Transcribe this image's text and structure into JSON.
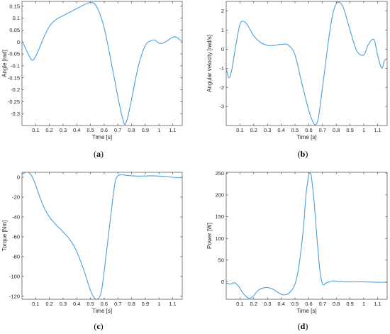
{
  "colors": {
    "line": "#4a9fdc",
    "axis": "#262626",
    "background": "#ffffff"
  },
  "chart_data": [
    {
      "type": "line",
      "caption_letter": "a",
      "xlabel": "Time [s]",
      "ylabel": "Angle [rad]",
      "xlim": [
        0,
        1.17
      ],
      "ylim": [
        -0.35,
        0.17
      ],
      "xticks": [
        0.1,
        0.2,
        0.3,
        0.4,
        0.5,
        0.6,
        0.7,
        0.8,
        0.9,
        1,
        1.1
      ],
      "xtick_labels": [
        "0.1",
        "0.2",
        "0.3",
        "0.4",
        "0.5",
        "0.6",
        "0.7",
        "0.8",
        "0.9",
        "1",
        "1.1"
      ],
      "yticks": [
        0.15,
        0.1,
        0.05,
        0,
        -0.05,
        -0.1,
        -0.15,
        -0.2,
        -0.25,
        -0.3
      ],
      "ytick_labels": [
        "0.15",
        "0.1",
        "0.05",
        "0",
        "-0.05",
        "-0.1",
        "-0.15",
        "-0.2",
        "-0.25",
        "-0.3"
      ],
      "grid": false,
      "series": [
        {
          "x": [
            0,
            0.02,
            0.05,
            0.07,
            0.09,
            0.12,
            0.16,
            0.2,
            0.25,
            0.3,
            0.35,
            0.4,
            0.45,
            0.48,
            0.5,
            0.53,
            0.56,
            0.6,
            0.65,
            0.7,
            0.73,
            0.75,
            0.77,
            0.8,
            0.85,
            0.9,
            0.94,
            0.97,
            1.0,
            1.03,
            1.06,
            1.1,
            1.13,
            1.15,
            1.17
          ],
          "y": [
            0.005,
            -0.02,
            -0.055,
            -0.075,
            -0.07,
            -0.035,
            0.02,
            0.065,
            0.095,
            0.11,
            0.125,
            0.14,
            0.155,
            0.163,
            0.165,
            0.16,
            0.13,
            0.06,
            -0.08,
            -0.23,
            -0.31,
            -0.345,
            -0.32,
            -0.24,
            -0.1,
            -0.015,
            0.005,
            0.008,
            -0.005,
            -0.005,
            0.005,
            0.02,
            0.02,
            0.01,
            0.005
          ]
        }
      ]
    },
    {
      "type": "line",
      "caption_letter": "b",
      "xlabel": "Time [s]",
      "ylabel": "Angular velocity [rad/s]",
      "xlim": [
        0,
        1.17
      ],
      "ylim": [
        -4.0,
        2.5
      ],
      "xticks": [
        0.1,
        0.2,
        0.3,
        0.4,
        0.5,
        0.6,
        0.7,
        0.8,
        0.9,
        1,
        1.1
      ],
      "xtick_labels": [
        "0.1",
        "0.2",
        "0.3",
        "0.4",
        "0.5",
        "0.6",
        "0.7",
        "0.8",
        "0.9",
        "1",
        "1.1"
      ],
      "yticks": [
        2,
        1,
        0,
        -1,
        -2,
        -3
      ],
      "ytick_labels": [
        "2",
        "1",
        "0",
        "-1",
        "-2",
        "-3"
      ],
      "grid": false,
      "series": [
        {
          "x": [
            0,
            0.02,
            0.04,
            0.07,
            0.1,
            0.13,
            0.16,
            0.2,
            0.25,
            0.3,
            0.35,
            0.4,
            0.45,
            0.5,
            0.55,
            0.6,
            0.63,
            0.65,
            0.67,
            0.7,
            0.75,
            0.78,
            0.81,
            0.85,
            0.9,
            0.95,
            1.0,
            1.03,
            1.06,
            1.08,
            1.1,
            1.13,
            1.15,
            1.17
          ],
          "y": [
            -1.0,
            -1.5,
            -1.1,
            0.2,
            1.3,
            1.45,
            1.2,
            0.7,
            0.35,
            0.2,
            0.2,
            0.25,
            0.22,
            -0.3,
            -1.8,
            -3.2,
            -3.8,
            -3.95,
            -3.6,
            -2.0,
            0.8,
            2.0,
            2.45,
            2.2,
            1.0,
            -0.1,
            -0.3,
            0.2,
            0.5,
            0.4,
            -0.3,
            -1.0,
            -0.6,
            -0.5
          ]
        }
      ]
    },
    {
      "type": "line",
      "caption_letter": "c",
      "xlabel": "Time [s]",
      "ylabel": "Torque [Nm]",
      "xlim": [
        0,
        1.17
      ],
      "ylim": [
        -123,
        5
      ],
      "xticks": [
        0.1,
        0.2,
        0.3,
        0.4,
        0.5,
        0.6,
        0.7,
        0.8,
        0.9,
        1,
        1.1
      ],
      "xtick_labels": [
        "0.1",
        "0.2",
        "0.3",
        "0.4",
        "0.5",
        "0.6",
        "0.7",
        "0.8",
        "0.9",
        "1",
        "1.1"
      ],
      "yticks": [
        0,
        -20,
        -40,
        -60,
        -80,
        -100,
        -120
      ],
      "ytick_labels": [
        "0",
        "-20",
        "-40",
        "-60",
        "-80",
        "-100",
        "-120"
      ],
      "grid": false,
      "series": [
        {
          "x": [
            0,
            0.02,
            0.04,
            0.06,
            0.08,
            0.1,
            0.13,
            0.16,
            0.2,
            0.25,
            0.3,
            0.35,
            0.4,
            0.45,
            0.5,
            0.53,
            0.56,
            0.58,
            0.6,
            0.63,
            0.66,
            0.68,
            0.7,
            0.73,
            0.76,
            0.8,
            0.85,
            0.9,
            0.95,
            1.0,
            1.05,
            1.1,
            1.15,
            1.17
          ],
          "y": [
            3,
            4.5,
            5,
            3.5,
            -1,
            -8,
            -20,
            -30,
            -40,
            -48,
            -55,
            -63,
            -75,
            -93,
            -114,
            -122,
            -122,
            -115,
            -95,
            -60,
            -25,
            -5,
            1.5,
            2.5,
            2,
            1.5,
            1.2,
            1.3,
            1.5,
            1.2,
            0.8,
            0,
            -0.5,
            0
          ]
        }
      ]
    },
    {
      "type": "line",
      "caption_letter": "d",
      "xlabel": "Time [s]",
      "ylabel": "Power [W]",
      "xlim": [
        0,
        1.17
      ],
      "ylim": [
        -40,
        252
      ],
      "xticks": [
        0.1,
        0.2,
        0.3,
        0.4,
        0.5,
        0.6,
        0.7,
        0.8,
        0.9,
        1,
        1.1
      ],
      "xtick_labels": [
        "0.1",
        "0.2",
        "0.3",
        "0.4",
        "0.5",
        "0.6",
        "0.7",
        "0.8",
        "0.9",
        "1",
        "1.1"
      ],
      "yticks": [
        250,
        200,
        150,
        100,
        50,
        0
      ],
      "ytick_labels": [
        "250",
        "200",
        "150",
        "100",
        "50",
        "0"
      ],
      "grid": false,
      "series": [
        {
          "x": [
            0,
            0.03,
            0.06,
            0.09,
            0.12,
            0.15,
            0.17,
            0.2,
            0.23,
            0.27,
            0.3,
            0.34,
            0.38,
            0.42,
            0.46,
            0.5,
            0.53,
            0.56,
            0.58,
            0.6,
            0.61,
            0.62,
            0.64,
            0.66,
            0.68,
            0.7,
            0.73,
            0.77,
            0.82,
            0.9,
            1.0,
            1.1,
            1.17
          ],
          "y": [
            -3,
            -5,
            -2,
            -10,
            -25,
            -35,
            -38,
            -32,
            -20,
            -14,
            -13,
            -17,
            -25,
            -30,
            -25,
            -5,
            40,
            120,
            200,
            245,
            250,
            240,
            180,
            100,
            30,
            -5,
            -2,
            2,
            1,
            0,
            0,
            -1,
            -1
          ]
        }
      ]
    }
  ]
}
